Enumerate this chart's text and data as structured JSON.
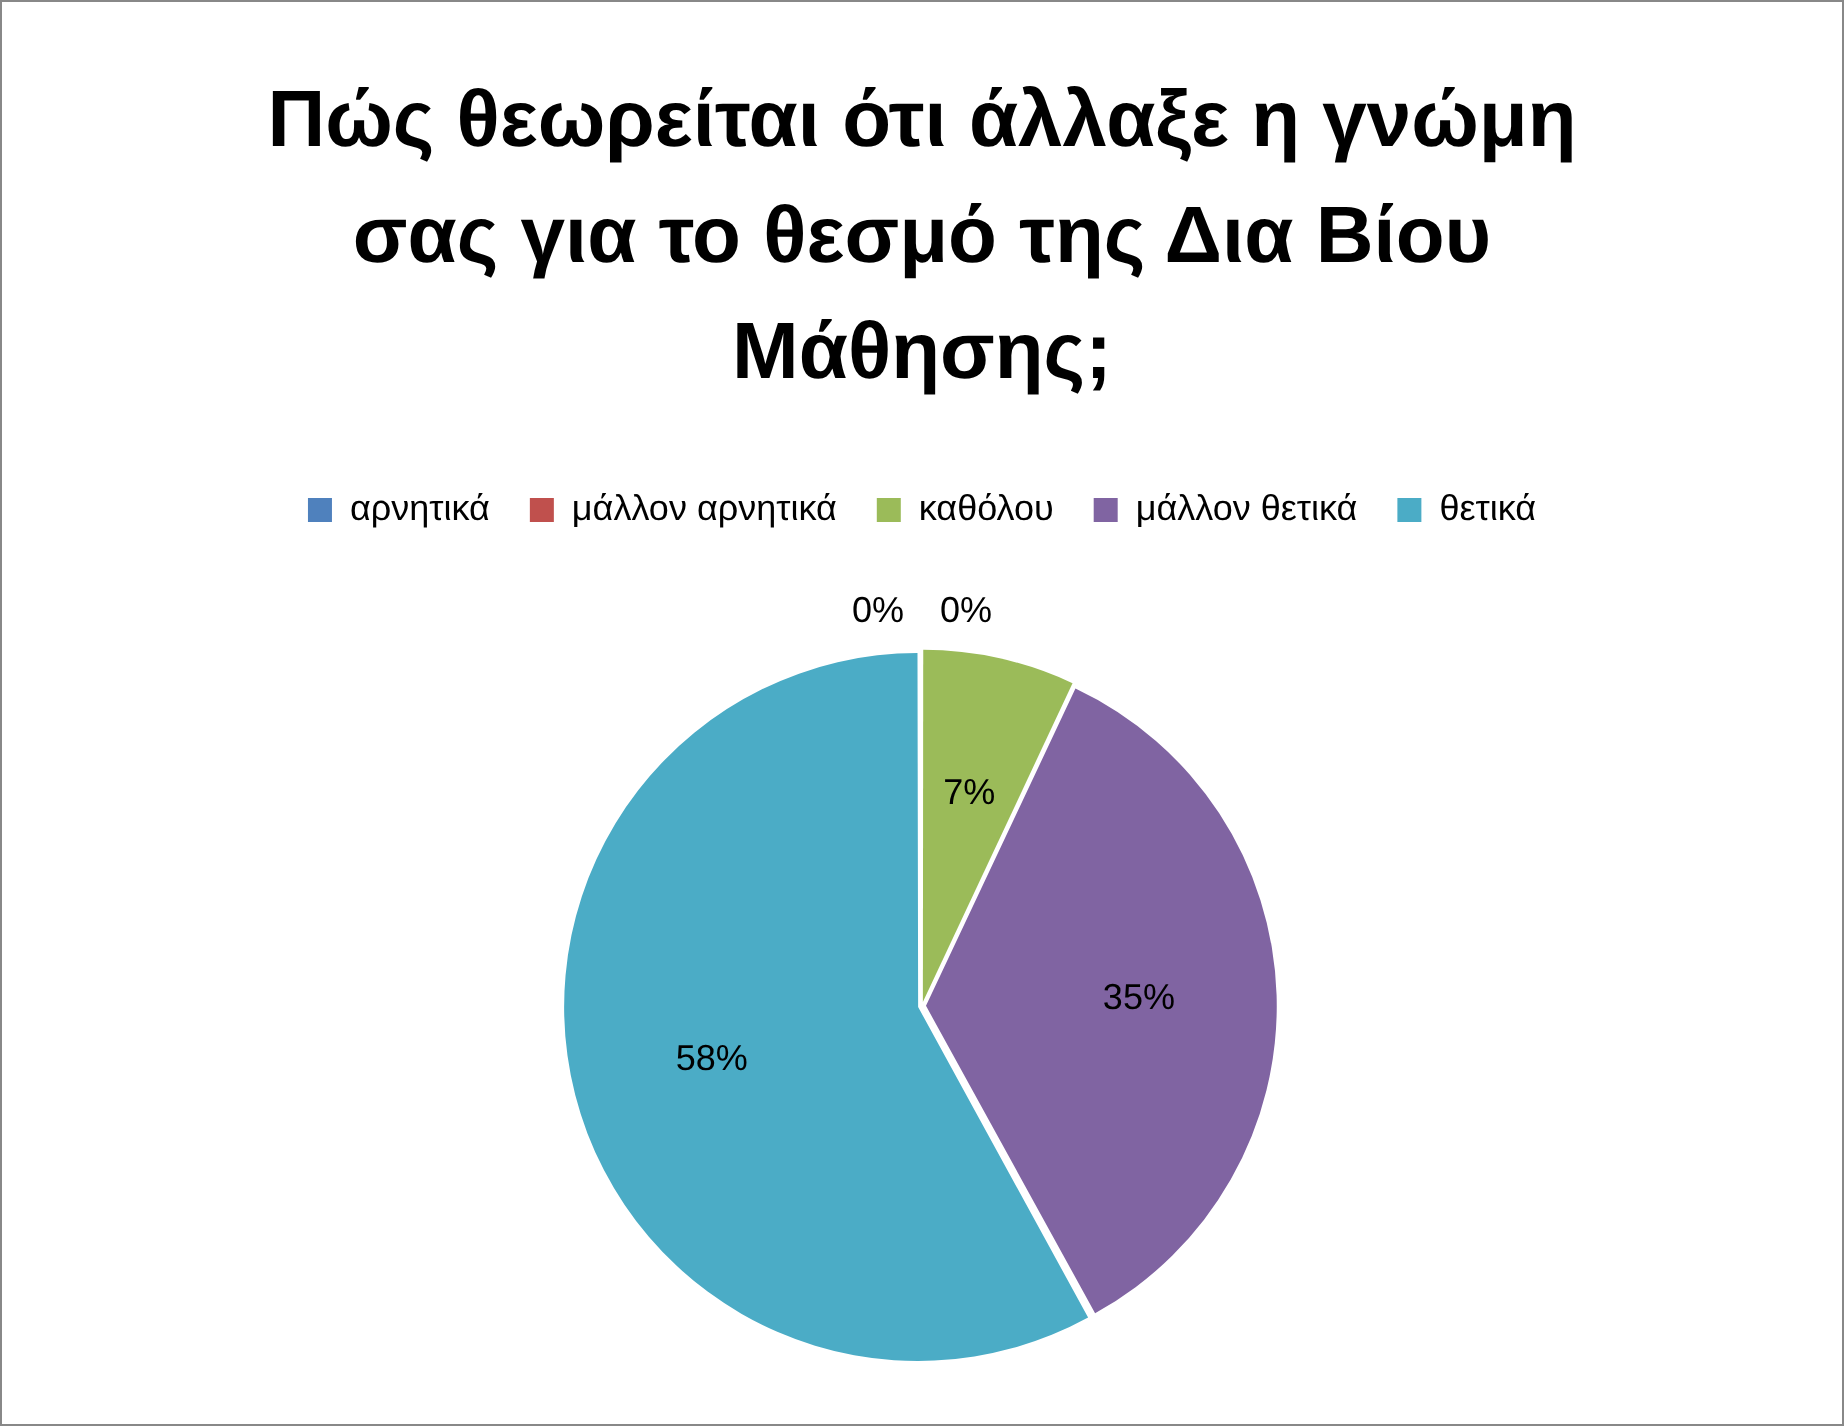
{
  "chart_data": {
    "type": "pie",
    "title": "Πώς θεωρείται ότι άλλαξε η γνώμη σας για το θεσμό της Δια Βίου Μάθησης;",
    "categories": [
      "αρνητικά",
      "μάλλον αρνητικά",
      "καθόλου",
      "μάλλον θετικά",
      "θετικά"
    ],
    "values": [
      0,
      0,
      7,
      35,
      58
    ],
    "colors": [
      "#4f81bd",
      "#c0504d",
      "#9bbb59",
      "#8064a2",
      "#4bacc6"
    ],
    "value_labels": [
      "0%",
      "0%",
      "7%",
      "35%",
      "58%"
    ],
    "legend": "top"
  }
}
